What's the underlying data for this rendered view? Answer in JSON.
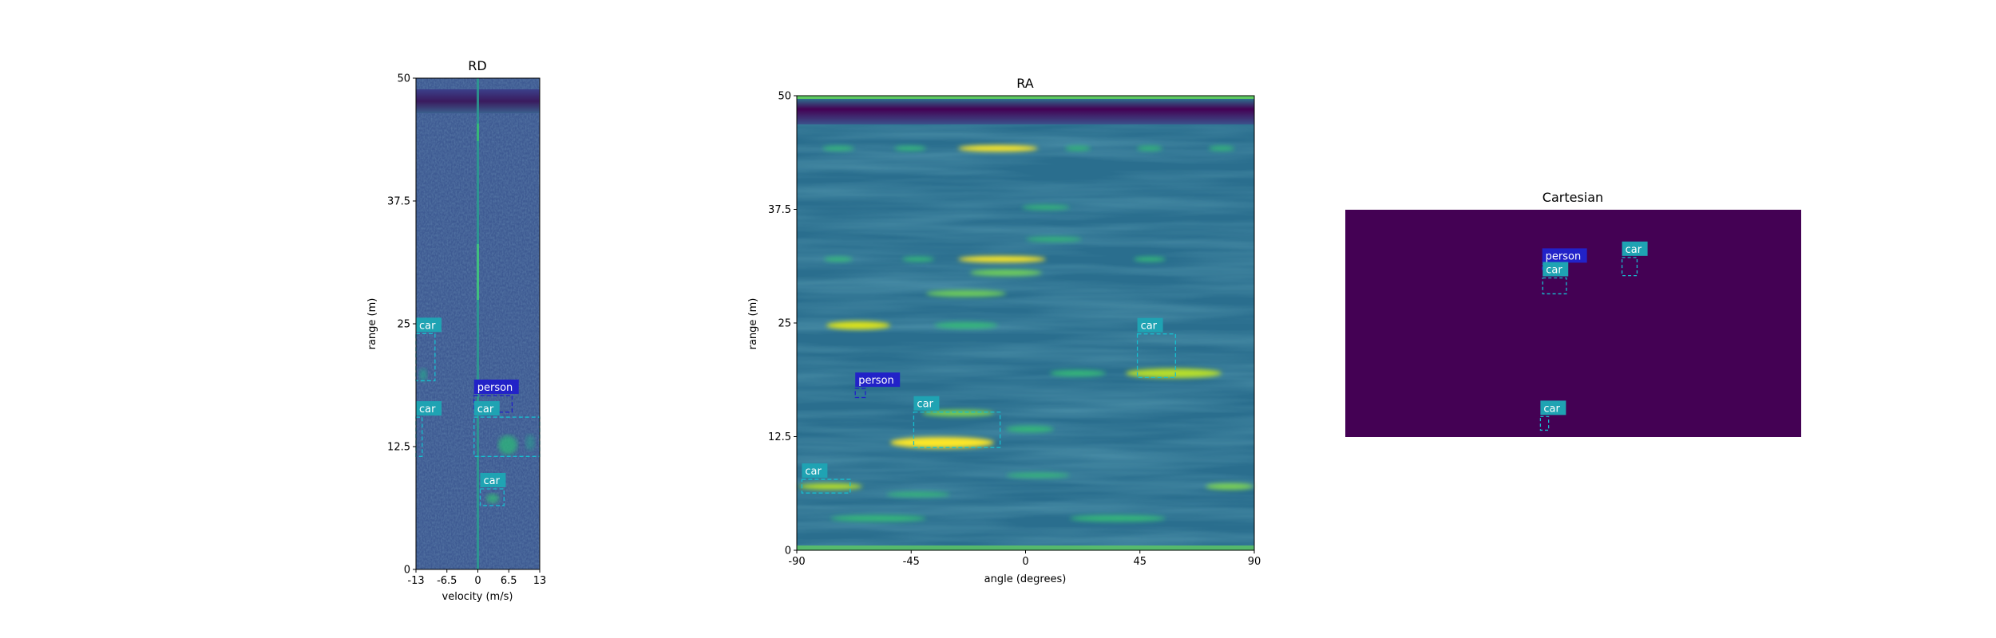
{
  "colors": {
    "viridis_dark": "#440154",
    "viridis_mid": "#21918c",
    "viridis_bright": "#fde725",
    "car_box": "#17becf",
    "car_label_bg": "#1fa3b3",
    "person_box": "#1f1fc8",
    "person_label_bg": "#2222c8"
  },
  "chart_data": [
    {
      "name": "rd",
      "type": "heatmap",
      "title": "RD",
      "xlabel": "velocity (m/s)",
      "ylabel": "range (m)",
      "xlim": [
        -13,
        13
      ],
      "ylim": [
        0,
        50
      ],
      "xticks": [
        {
          "value": -13,
          "label": "-13"
        },
        {
          "value": -6.5,
          "label": "-6.5"
        },
        {
          "value": 0,
          "label": "0"
        },
        {
          "value": 6.5,
          "label": "6.5"
        },
        {
          "value": 13,
          "label": "13"
        }
      ],
      "yticks": [
        {
          "value": 0,
          "label": "0"
        },
        {
          "value": 12.5,
          "label": "12.5"
        },
        {
          "value": 25,
          "label": "25"
        },
        {
          "value": 37.5,
          "label": "37.5"
        },
        {
          "value": 50,
          "label": "50"
        }
      ],
      "colormap": "viridis",
      "detections": [
        {
          "label": "car",
          "x0": -13,
          "x1": -9,
          "y0": 19.2,
          "y1": 24
        },
        {
          "label": "person",
          "x0": -0.8,
          "x1": 7.2,
          "y0": 16,
          "y1": 17.7
        },
        {
          "label": "car",
          "x0": -0.8,
          "x1": 13,
          "y0": 11.5,
          "y1": 15.5
        },
        {
          "label": "car",
          "x0": -13,
          "x1": -11.7,
          "y0": 11.5,
          "y1": 15.5
        },
        {
          "label": "car",
          "x0": 0.5,
          "x1": 5.5,
          "y0": 6.5,
          "y1": 8.2
        }
      ]
    },
    {
      "name": "ra",
      "type": "heatmap",
      "title": "RA",
      "xlabel": "angle (degrees)",
      "ylabel": "range (m)",
      "xlim": [
        -90,
        90
      ],
      "ylim": [
        0,
        50
      ],
      "xticks": [
        {
          "value": -90,
          "label": "-90"
        },
        {
          "value": -45,
          "label": "-45"
        },
        {
          "value": 0,
          "label": "0"
        },
        {
          "value": 45,
          "label": "45"
        },
        {
          "value": 90,
          "label": "90"
        }
      ],
      "yticks": [
        {
          "value": 0,
          "label": "0"
        },
        {
          "value": 12.5,
          "label": "12.5"
        },
        {
          "value": 25,
          "label": "25"
        },
        {
          "value": 37.5,
          "label": "37.5"
        },
        {
          "value": 50,
          "label": "50"
        }
      ],
      "colormap": "viridis",
      "detections": [
        {
          "label": "car",
          "x0": 44,
          "x1": 59,
          "y0": 19,
          "y1": 23.8
        },
        {
          "label": "person",
          "x0": -67,
          "x1": -63,
          "y0": 16.8,
          "y1": 17.8
        },
        {
          "label": "car",
          "x0": -44,
          "x1": -10,
          "y0": 11.3,
          "y1": 15.2
        },
        {
          "label": "car",
          "x0": -88,
          "x1": -69,
          "y0": 6.3,
          "y1": 7.8
        }
      ]
    },
    {
      "name": "cartesian",
      "type": "heatmap",
      "title": "Cartesian",
      "colormap": "viridis",
      "detections": [
        {
          "label": "car",
          "x0": 0.607,
          "x1": 0.64,
          "y0": 0.71,
          "y1": 0.79
        },
        {
          "label": "person",
          "x0": 0.432,
          "x1": 0.46,
          "y0": 0.73,
          "y1": 0.76
        },
        {
          "label": "car",
          "x0": 0.433,
          "x1": 0.485,
          "y0": 0.63,
          "y1": 0.7
        },
        {
          "label": "car",
          "x0": 0.428,
          "x1": 0.446,
          "y0": 0.03,
          "y1": 0.09
        }
      ]
    }
  ]
}
